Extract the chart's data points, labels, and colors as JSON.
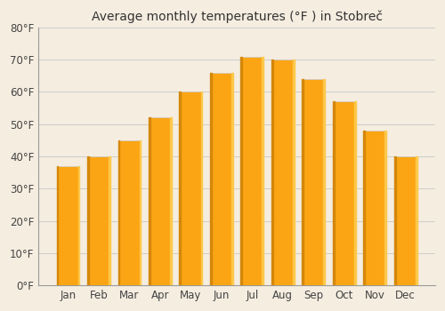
{
  "title": "Average monthly temperatures (°F ) in Stobreč",
  "months": [
    "Jan",
    "Feb",
    "Mar",
    "Apr",
    "May",
    "Jun",
    "Jul",
    "Aug",
    "Sep",
    "Oct",
    "Nov",
    "Dec"
  ],
  "values": [
    37,
    40,
    45,
    52,
    60,
    66,
    71,
    70,
    64,
    57,
    48,
    40
  ],
  "bar_color_main": "#FBA514",
  "bar_color_left": "#D4870A",
  "bar_color_right": "#FDC84A",
  "ylim": [
    0,
    80
  ],
  "yticks": [
    0,
    10,
    20,
    30,
    40,
    50,
    60,
    70,
    80
  ],
  "ytick_labels": [
    "0°F",
    "10°F",
    "20°F",
    "30°F",
    "40°F",
    "50°F",
    "60°F",
    "70°F",
    "80°F"
  ],
  "bg_color": "#f5ede0",
  "plot_bg_color": "#f5ede0",
  "grid_color": "#cccccc",
  "title_fontsize": 10,
  "tick_fontsize": 8.5,
  "bar_width": 0.75
}
